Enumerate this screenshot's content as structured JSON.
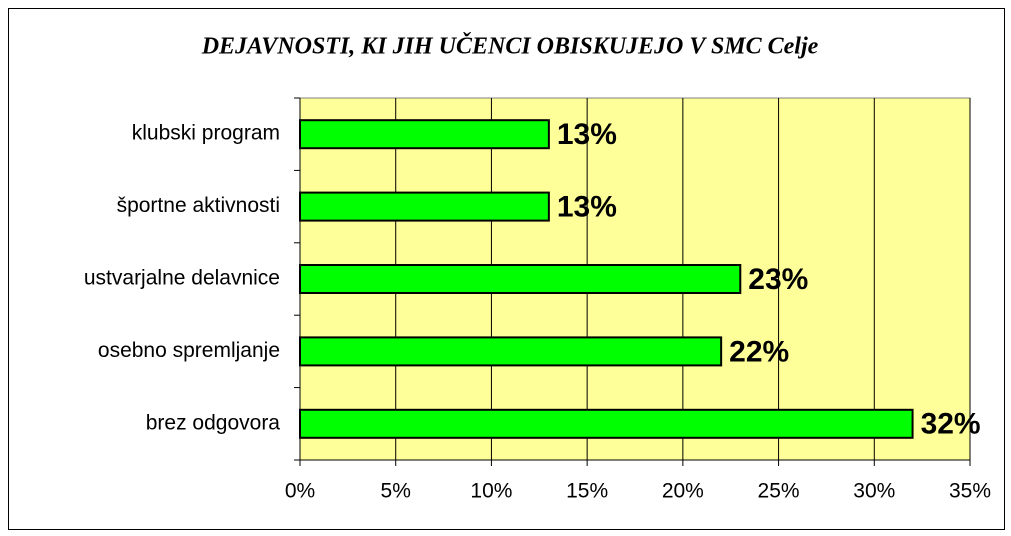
{
  "chart_data": {
    "type": "bar",
    "orientation": "horizontal",
    "title": "DEJAVNOSTI, KI JIH UČENCI OBISKUJEJO V SMC Celje",
    "categories": [
      "klubski program",
      "športne aktivnosti",
      "ustvarjalne delavnice",
      "osebno spremljanje",
      "brez odgovora"
    ],
    "values": [
      13,
      13,
      23,
      22,
      32
    ],
    "value_labels": [
      "13%",
      "13%",
      "23%",
      "22%",
      "32%"
    ],
    "color": "#00ff00",
    "plot_background": "#ffff99",
    "xlim": [
      0,
      35
    ],
    "xticks": [
      {
        "value": 0,
        "label": "0%"
      },
      {
        "value": 5,
        "label": "5%"
      },
      {
        "value": 10,
        "label": "10%"
      },
      {
        "value": 15,
        "label": "15%"
      },
      {
        "value": 20,
        "label": "20%"
      },
      {
        "value": 25,
        "label": "25%"
      },
      {
        "value": 30,
        "label": "30%"
      },
      {
        "value": 35,
        "label": "35%"
      }
    ],
    "grid": true
  }
}
